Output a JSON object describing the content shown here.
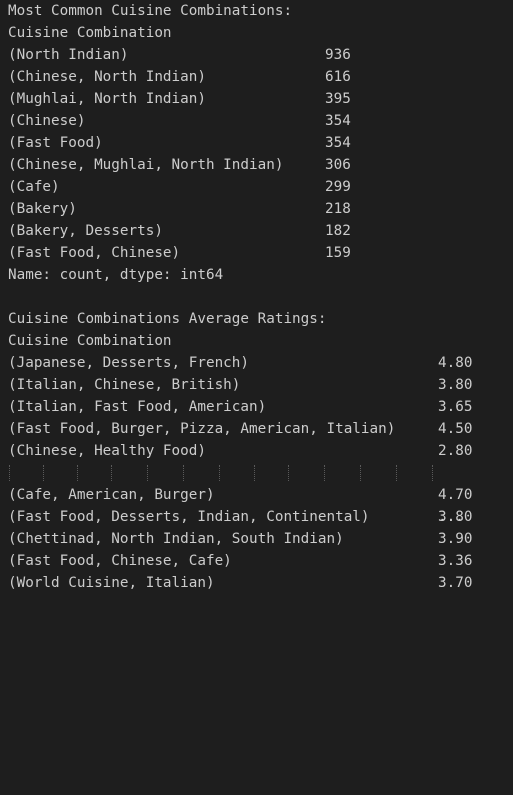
{
  "output": {
    "common_heading": "Most Common Cuisine Combinations:",
    "common_index_name": "Cuisine Combination",
    "common_rows": [
      {
        "label": "(North Indian)",
        "value": "936"
      },
      {
        "label": "(Chinese, North Indian)",
        "value": "616"
      },
      {
        "label": "(Mughlai, North Indian)",
        "value": "395"
      },
      {
        "label": "(Chinese)",
        "value": "354"
      },
      {
        "label": "(Fast Food)",
        "value": "354"
      },
      {
        "label": "(Chinese, Mughlai, North Indian)",
        "value": "306"
      },
      {
        "label": "(Cafe)",
        "value": "299"
      },
      {
        "label": "(Bakery)",
        "value": "218"
      },
      {
        "label": "(Bakery, Desserts)",
        "value": "182"
      },
      {
        "label": "(Fast Food, Chinese)",
        "value": "159"
      }
    ],
    "common_footer": "Name: count, dtype: int64",
    "ratings_heading": "Cuisine Combinations Average Ratings:",
    "ratings_index_name": "Cuisine Combination",
    "ratings_rows_top": [
      {
        "label": "(Japanese, Desserts, French)",
        "value": "4.80"
      },
      {
        "label": "(Italian, Chinese, British)",
        "value": "3.80"
      },
      {
        "label": "(Italian, Fast Food, American)",
        "value": "3.65"
      },
      {
        "label": "(Fast Food, Burger, Pizza, American, Italian)",
        "value": "4.50"
      },
      {
        "label": "(Chinese, Healthy Food)",
        "value": "2.80"
      }
    ],
    "ellipsis": "...",
    "ratings_rows_bottom": [
      {
        "label": "(Cafe, American, Burger)",
        "value": "4.70"
      },
      {
        "label": "(Fast Food, Desserts, Indian, Continental)",
        "value": "3.80"
      },
      {
        "label": "(Chettinad, North Indian, South Indian)",
        "value": "3.90"
      },
      {
        "label": "(Fast Food, Chinese, Cafe)",
        "value": "3.36"
      },
      {
        "label": "(World Cuisine, Italian)",
        "value": "3.70"
      }
    ]
  }
}
